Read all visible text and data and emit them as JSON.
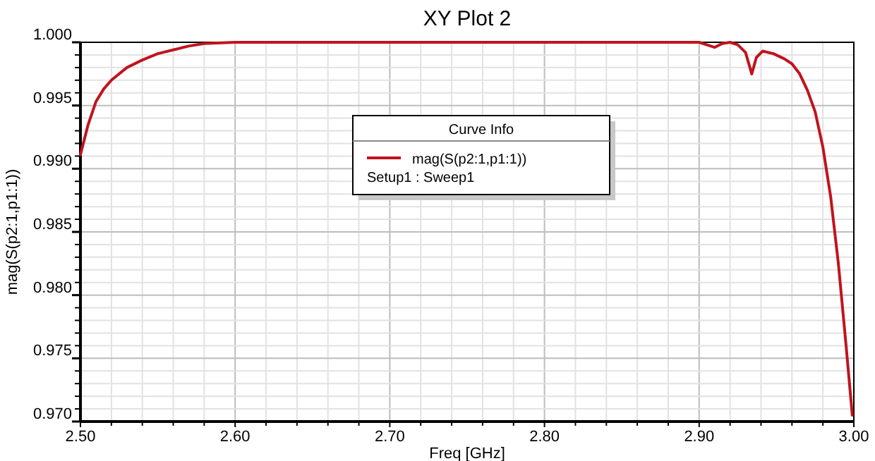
{
  "chart_data": {
    "type": "line",
    "title": "XY Plot 2",
    "xlabel": "Freq [GHz]",
    "ylabel": "mag(S(p2:1,p1:1))",
    "legend_title": "Curve Info",
    "annotations": [
      "Setup1 : Sweep1"
    ],
    "xlim": [
      2.5,
      3.0
    ],
    "ylim": [
      0.97,
      1.0
    ],
    "xticks": [
      {
        "value": 2.5,
        "label": "2.50"
      },
      {
        "value": 2.52,
        "label": null
      },
      {
        "value": 2.54,
        "label": null
      },
      {
        "value": 2.56,
        "label": null
      },
      {
        "value": 2.58,
        "label": null
      },
      {
        "value": 2.6,
        "label": "2.60"
      },
      {
        "value": 2.62,
        "label": null
      },
      {
        "value": 2.64,
        "label": null
      },
      {
        "value": 2.66,
        "label": null
      },
      {
        "value": 2.68,
        "label": null
      },
      {
        "value": 2.7,
        "label": "2.70"
      },
      {
        "value": 2.72,
        "label": null
      },
      {
        "value": 2.74,
        "label": null
      },
      {
        "value": 2.76,
        "label": null
      },
      {
        "value": 2.78,
        "label": null
      },
      {
        "value": 2.8,
        "label": "2.80"
      },
      {
        "value": 2.82,
        "label": null
      },
      {
        "value": 2.84,
        "label": null
      },
      {
        "value": 2.86,
        "label": null
      },
      {
        "value": 2.88,
        "label": null
      },
      {
        "value": 2.9,
        "label": "2.90"
      },
      {
        "value": 2.92,
        "label": null
      },
      {
        "value": 2.94,
        "label": null
      },
      {
        "value": 2.96,
        "label": null
      },
      {
        "value": 2.98,
        "label": null
      },
      {
        "value": 3.0,
        "label": "3.00"
      }
    ],
    "yticks": [
      {
        "value": 0.97,
        "label": "0.970"
      },
      {
        "value": 0.971,
        "label": null
      },
      {
        "value": 0.972,
        "label": null
      },
      {
        "value": 0.973,
        "label": null
      },
      {
        "value": 0.974,
        "label": null
      },
      {
        "value": 0.975,
        "label": "0.975"
      },
      {
        "value": 0.976,
        "label": null
      },
      {
        "value": 0.977,
        "label": null
      },
      {
        "value": 0.978,
        "label": null
      },
      {
        "value": 0.979,
        "label": null
      },
      {
        "value": 0.98,
        "label": "0.980"
      },
      {
        "value": 0.981,
        "label": null
      },
      {
        "value": 0.982,
        "label": null
      },
      {
        "value": 0.983,
        "label": null
      },
      {
        "value": 0.984,
        "label": null
      },
      {
        "value": 0.985,
        "label": "0.985"
      },
      {
        "value": 0.986,
        "label": null
      },
      {
        "value": 0.987,
        "label": null
      },
      {
        "value": 0.988,
        "label": null
      },
      {
        "value": 0.989,
        "label": null
      },
      {
        "value": 0.99,
        "label": "0.990"
      },
      {
        "value": 0.991,
        "label": null
      },
      {
        "value": 0.992,
        "label": null
      },
      {
        "value": 0.993,
        "label": null
      },
      {
        "value": 0.994,
        "label": null
      },
      {
        "value": 0.995,
        "label": "0.995"
      },
      {
        "value": 0.996,
        "label": null
      },
      {
        "value": 0.997,
        "label": null
      },
      {
        "value": 0.998,
        "label": null
      },
      {
        "value": 0.999,
        "label": null
      },
      {
        "value": 1.0,
        "label": "1.000"
      }
    ],
    "grid": true,
    "legend": "top",
    "line_style": "solid",
    "series": [
      {
        "name": "mag(S(p2:1,p1:1))",
        "color": "#c0141e",
        "x": [
          2.5,
          2.505,
          2.51,
          2.515,
          2.52,
          2.53,
          2.54,
          2.55,
          2.56,
          2.57,
          2.58,
          2.6,
          2.7,
          2.8,
          2.9,
          2.905,
          2.91,
          2.915,
          2.92,
          2.925,
          2.93,
          2.934,
          2.937,
          2.941,
          2.948,
          2.955,
          2.96,
          2.965,
          2.97,
          2.975,
          2.98,
          2.985,
          2.99,
          2.995,
          2.999
        ],
        "values": [
          0.9911,
          0.9935,
          0.9953,
          0.9963,
          0.997,
          0.998,
          0.9986,
          0.9991,
          0.9994,
          0.9997,
          0.9999,
          1.0,
          1.0,
          1.0,
          1.0,
          0.9998,
          0.9996,
          0.9999,
          1.0,
          0.9998,
          0.9992,
          0.9975,
          0.9988,
          0.9993,
          0.9991,
          0.9987,
          0.9983,
          0.9975,
          0.9962,
          0.9945,
          0.9917,
          0.9878,
          0.9825,
          0.976,
          0.9705
        ]
      }
    ]
  }
}
